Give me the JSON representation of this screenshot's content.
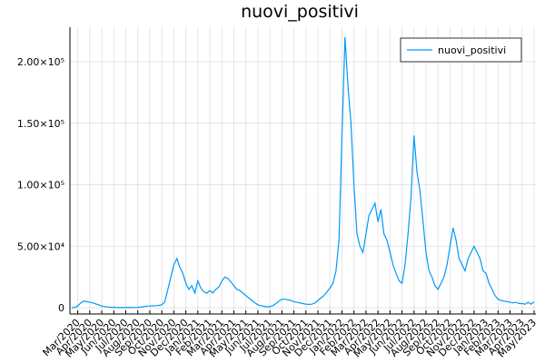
{
  "chart_data": {
    "type": "line",
    "title": "nuovi_positivi",
    "categories": [
      null,
      null,
      "Mar/2020",
      null,
      null,
      null,
      "Apr/2020",
      null,
      null,
      null,
      "May/2020",
      null,
      null,
      null,
      "Jun/2020",
      null,
      null,
      null,
      "Jul/2020",
      null,
      null,
      null,
      "Aug/2020",
      null,
      null,
      null,
      "Sep/2020",
      null,
      null,
      null,
      "Oct/2020",
      null,
      null,
      null,
      "Nov/2020",
      null,
      null,
      null,
      "Dec/2020",
      null,
      null,
      null,
      "Jan/2021",
      null,
      null,
      null,
      "Feb/2021",
      null,
      null,
      null,
      "Mar/2021",
      null,
      null,
      null,
      "Apr/2021",
      null,
      null,
      null,
      "May/2021",
      null,
      null,
      null,
      "Jun/2021",
      null,
      null,
      null,
      "Jul/2021",
      null,
      null,
      null,
      "Aug/2021",
      null,
      null,
      null,
      "Sep/2021",
      null,
      null,
      null,
      "Oct/2021",
      null,
      null,
      null,
      "Nov/2021",
      null,
      null,
      null,
      "Dec/2021",
      null,
      null,
      null,
      "Jan/2022",
      null,
      null,
      null,
      "Feb/2022",
      null,
      null,
      null,
      "Mar/2022",
      null,
      null,
      null,
      "Apr/2022",
      null,
      null,
      null,
      "May/2022",
      null,
      null,
      null,
      "Jun/2022",
      null,
      null,
      null,
      "Jul/2022",
      null,
      null,
      null,
      "Aug/2022",
      null,
      null,
      null,
      "Sep/2022",
      null,
      null,
      null,
      "Oct/2022",
      null,
      null,
      null,
      "Nov/2022",
      null,
      null,
      null,
      "Dec/2022",
      null,
      null,
      null,
      "Jan/2023",
      null,
      null,
      null,
      "Feb/2023",
      null,
      null,
      null,
      "Mar/2023",
      null,
      null,
      null,
      "Apr/2023",
      null,
      null,
      null,
      "May/2023"
    ],
    "series": [
      {
        "name": "nuovi_positivi",
        "color": "#009af9",
        "values": [
          100,
          300,
          1500,
          4000,
          5500,
          5000,
          4500,
          4000,
          3200,
          2500,
          1500,
          1000,
          700,
          500,
          350,
          300,
          250,
          200,
          200,
          250,
          250,
          300,
          400,
          600,
          1000,
          1400,
          1500,
          1600,
          1800,
          2000,
          2500,
          5000,
          15000,
          25000,
          35000,
          40000,
          33000,
          28000,
          20000,
          15000,
          18000,
          12000,
          22000,
          16000,
          13000,
          12000,
          14000,
          12000,
          15000,
          17000,
          22000,
          25000,
          24000,
          21000,
          18000,
          15000,
          14000,
          12000,
          10000,
          8000,
          6000,
          4000,
          2500,
          1800,
          1200,
          900,
          1000,
          1800,
          3500,
          5500,
          7000,
          7000,
          6500,
          6000,
          5000,
          4500,
          4000,
          3500,
          3000,
          2800,
          3000,
          4000,
          6000,
          8000,
          10000,
          13000,
          16000,
          20000,
          30000,
          55000,
          140000,
          220000,
          180000,
          150000,
          100000,
          60000,
          50000,
          45000,
          60000,
          75000,
          80000,
          85000,
          70000,
          80000,
          60000,
          55000,
          45000,
          35000,
          28000,
          22000,
          20000,
          35000,
          60000,
          90000,
          140000,
          110000,
          95000,
          70000,
          45000,
          30000,
          25000,
          18000,
          15000,
          20000,
          25000,
          35000,
          50000,
          65000,
          55000,
          40000,
          35000,
          30000,
          40000,
          45000,
          50000,
          45000,
          40000,
          30000,
          28000,
          20000,
          15000,
          10000,
          7000,
          6000,
          5500,
          5000,
          4500,
          4000,
          4500,
          3500,
          3500,
          3000,
          4500,
          3000,
          5000
        ]
      }
    ],
    "ylim": [
      -5000,
      228000
    ],
    "yticks": [
      {
        "value": 0,
        "label": "0"
      },
      {
        "value": 50000,
        "label": "5.00×10⁴"
      },
      {
        "value": 100000,
        "label": "1.00×10⁵"
      },
      {
        "value": 150000,
        "label": "1.50×10⁵"
      },
      {
        "value": 200000,
        "label": "2.00×10⁵"
      }
    ],
    "grid": true,
    "legend": "top-right"
  }
}
